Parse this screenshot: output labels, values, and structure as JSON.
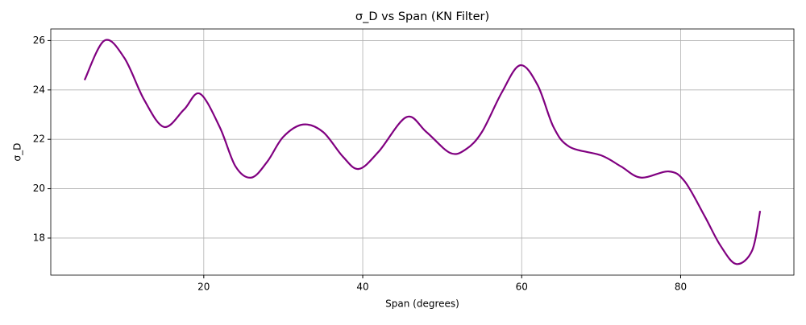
{
  "chart_data": {
    "type": "line",
    "title": "σ_D vs Span (KN Filter)",
    "xlabel": "Span (degrees)",
    "ylabel": "σ_D",
    "x": [
      5,
      7.5,
      10,
      12.5,
      15,
      17.5,
      19.5,
      22,
      24,
      26,
      28,
      30,
      32.5,
      35,
      37.5,
      39.5,
      42,
      45.5,
      48,
      51,
      53,
      55,
      57.5,
      59.8,
      62,
      64,
      66,
      70,
      72.5,
      75,
      78.5,
      80.5,
      83,
      85,
      87,
      89,
      90
    ],
    "series": [
      {
        "name": "σ_D",
        "color": "#800080",
        "values": [
          24.4,
          26.0,
          25.3,
          23.6,
          22.5,
          23.2,
          23.85,
          22.5,
          20.9,
          20.45,
          21.1,
          22.1,
          22.6,
          22.3,
          21.3,
          20.8,
          21.5,
          22.9,
          22.3,
          21.45,
          21.6,
          22.3,
          23.9,
          25.0,
          24.2,
          22.5,
          21.7,
          21.35,
          20.9,
          20.45,
          20.7,
          20.3,
          18.9,
          17.7,
          16.95,
          17.5,
          19.1
        ]
      }
    ],
    "xlim": [
      0.75,
      94.25
    ],
    "xticks": [
      20,
      40,
      60,
      80
    ],
    "ylim": [
      16.5,
      26.47
    ],
    "yticks": [
      18,
      20,
      22,
      24,
      26
    ],
    "grid": true
  }
}
